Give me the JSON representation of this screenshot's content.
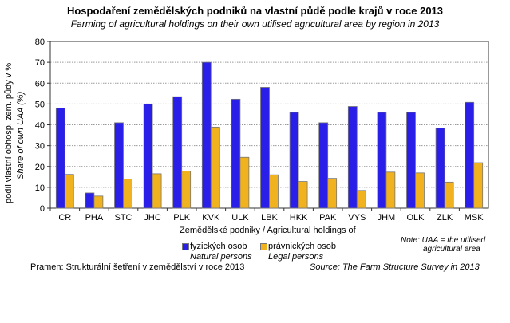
{
  "chart_data": {
    "type": "bar",
    "title": "Hospodaření zemědělských podniků na vlastní půdě podle krajů v roce 2013",
    "subtitle": "Farming of agricultural holdings on their own utilised agricultural area by region in 2013",
    "ylabel": "podíl vlastní obhosp. zem. půdy v %",
    "ylabel_en": "Share of own UAA (%)",
    "xlabel": "Zemědělské podniky / Agricultural holdings of",
    "ylim": [
      0,
      80
    ],
    "yticks": [
      "0",
      "10",
      "20",
      "30",
      "40",
      "50",
      "60",
      "70",
      "80"
    ],
    "grid": true,
    "categories": [
      "CR",
      "PHA",
      "STC",
      "JHC",
      "PLK",
      "KVK",
      "ULK",
      "LBK",
      "HKK",
      "PAK",
      "VYS",
      "JHM",
      "OLK",
      "ZLK",
      "MSK"
    ],
    "series": [
      {
        "name": "fyzických osob",
        "name_en": "Natural persons",
        "color": "#2a1fe8",
        "values": [
          48,
          7.3,
          41,
          50,
          53.5,
          70,
          52.3,
          58,
          46,
          41,
          48.8,
          46,
          46,
          38.5,
          50.8
        ]
      },
      {
        "name": "právnických osob",
        "name_en": "Legal persons",
        "color": "#f0b21e",
        "values": [
          16.2,
          5.8,
          14,
          16.5,
          17.8,
          38.9,
          24.4,
          16,
          12.8,
          14.3,
          8.5,
          17.3,
          16.9,
          12.5,
          21.8
        ]
      }
    ],
    "legend": "bottom",
    "note": "Note: UAA = the utilised",
    "note2": "agricultural area",
    "source_cz": "Pramen: Strukturální šetření v zemědělství v roce 2013",
    "source_en": "Source: The Farm Structure Survey in 2013"
  }
}
